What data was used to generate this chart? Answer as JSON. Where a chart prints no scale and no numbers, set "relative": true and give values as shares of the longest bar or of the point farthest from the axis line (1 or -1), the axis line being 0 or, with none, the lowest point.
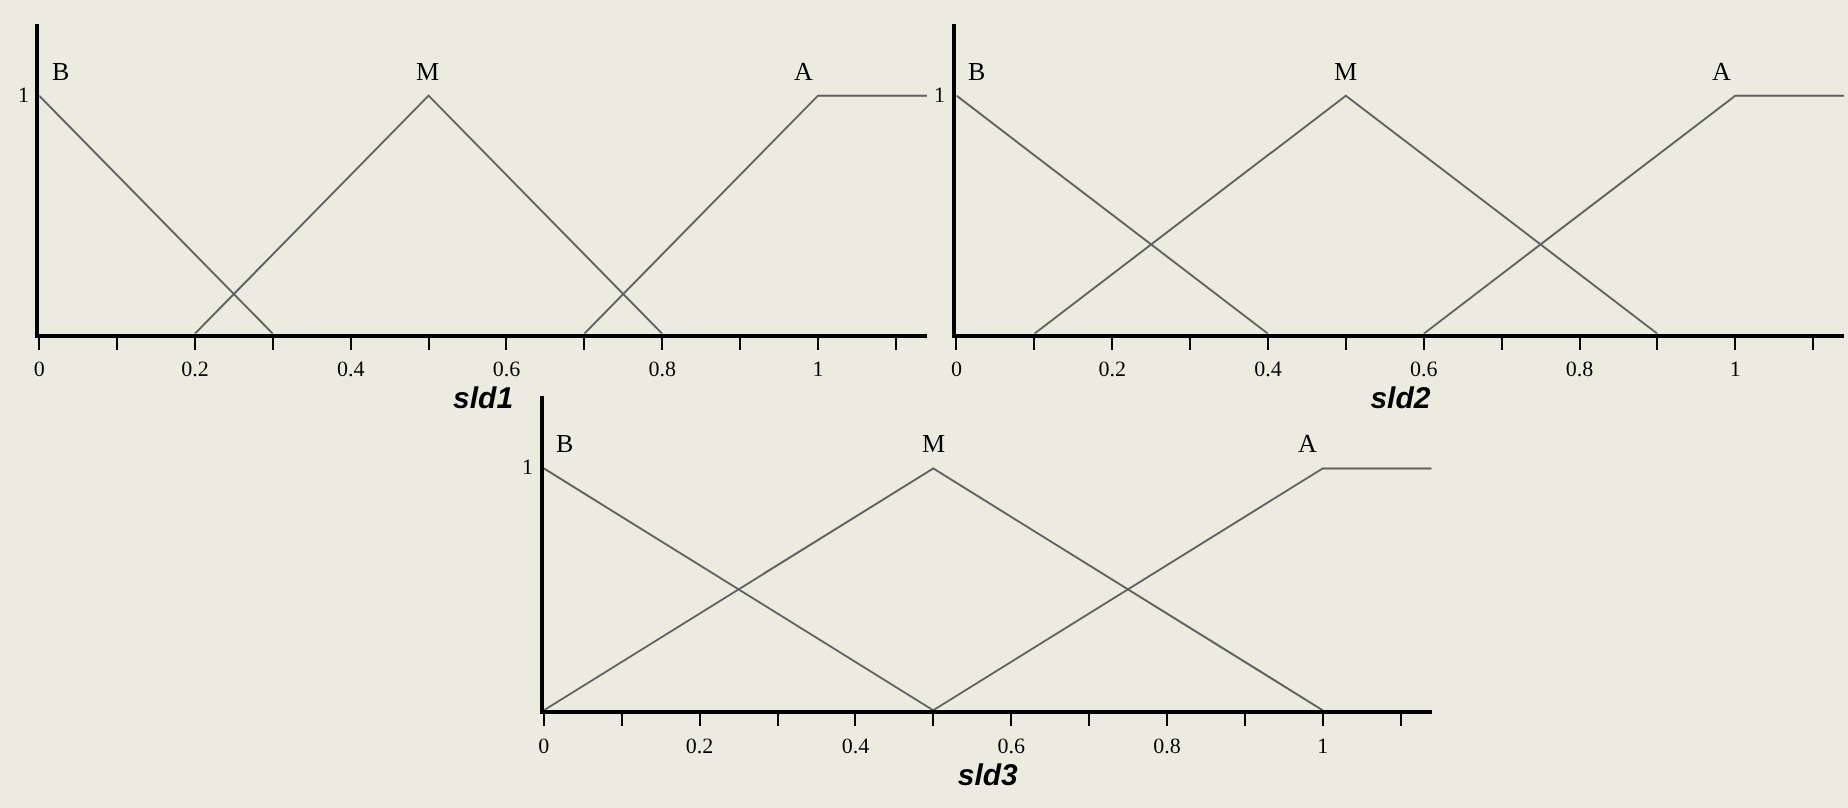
{
  "chart_data": [
    {
      "type": "line",
      "xlabel": "sld1",
      "relative": true,
      "annotations": [
        "1"
      ],
      "xlim": [
        0,
        1.14
      ],
      "xticks": [
        0,
        {
          "value": 0.1,
          "label": null
        },
        0.2,
        {
          "value": 0.3,
          "label": null
        },
        0.4,
        {
          "value": 0.5,
          "label": null
        },
        0.6,
        {
          "value": 0.7,
          "label": null
        },
        0.8,
        {
          "value": 0.9,
          "label": null
        },
        1,
        {
          "value": 1.1,
          "label": null
        }
      ],
      "color": "#606060",
      "grid": false,
      "legend": false,
      "marker": "none",
      "line_style": "solid",
      "series": [
        {
          "name": "B",
          "x": [
            0,
            0.3
          ],
          "values": [
            1,
            0
          ]
        },
        {
          "name": "M",
          "x": [
            0.2,
            0.5,
            0.8
          ],
          "values": [
            0,
            1,
            0
          ]
        },
        {
          "name": "A",
          "x": [
            0.7,
            1,
            1.14
          ],
          "values": [
            0,
            1,
            1
          ]
        }
      ]
    },
    {
      "type": "line",
      "xlabel": "sld2",
      "relative": true,
      "annotations": [
        "1"
      ],
      "xlim": [
        0,
        1.14
      ],
      "xticks": [
        0,
        {
          "value": 0.1,
          "label": null
        },
        0.2,
        {
          "value": 0.3,
          "label": null
        },
        0.4,
        {
          "value": 0.5,
          "label": null
        },
        0.6,
        {
          "value": 0.7,
          "label": null
        },
        0.8,
        {
          "value": 0.9,
          "label": null
        },
        1,
        {
          "value": 1.1,
          "label": null
        }
      ],
      "color": "#606060",
      "grid": false,
      "legend": false,
      "marker": "none",
      "line_style": "solid",
      "series": [
        {
          "name": "B",
          "x": [
            0,
            0.4
          ],
          "values": [
            1,
            0
          ]
        },
        {
          "name": "M",
          "x": [
            0.1,
            0.5,
            0.9
          ],
          "values": [
            0,
            1,
            0
          ]
        },
        {
          "name": "A",
          "x": [
            0.6,
            1,
            1.14
          ],
          "values": [
            0,
            1,
            1
          ]
        }
      ]
    },
    {
      "type": "line",
      "xlabel": "sld3",
      "relative": true,
      "annotations": [
        "1"
      ],
      "xlim": [
        0,
        1.14
      ],
      "xticks": [
        0,
        {
          "value": 0.1,
          "label": null
        },
        0.2,
        {
          "value": 0.3,
          "label": null
        },
        0.4,
        {
          "value": 0.5,
          "label": null
        },
        0.6,
        {
          "value": 0.7,
          "label": null
        },
        0.8,
        {
          "value": 0.9,
          "label": null
        },
        1,
        {
          "value": 1.1,
          "label": null
        }
      ],
      "color": "#606060",
      "grid": false,
      "legend": false,
      "marker": "none",
      "line_style": "solid",
      "series": [
        {
          "name": "B",
          "x": [
            0,
            0.5
          ],
          "values": [
            1,
            0
          ]
        },
        {
          "name": "M",
          "x": [
            0,
            0.5,
            1
          ],
          "values": [
            0,
            1,
            0
          ]
        },
        {
          "name": "A",
          "x": [
            0.5,
            1,
            1.14
          ],
          "values": [
            0,
            1,
            1
          ]
        }
      ]
    }
  ]
}
